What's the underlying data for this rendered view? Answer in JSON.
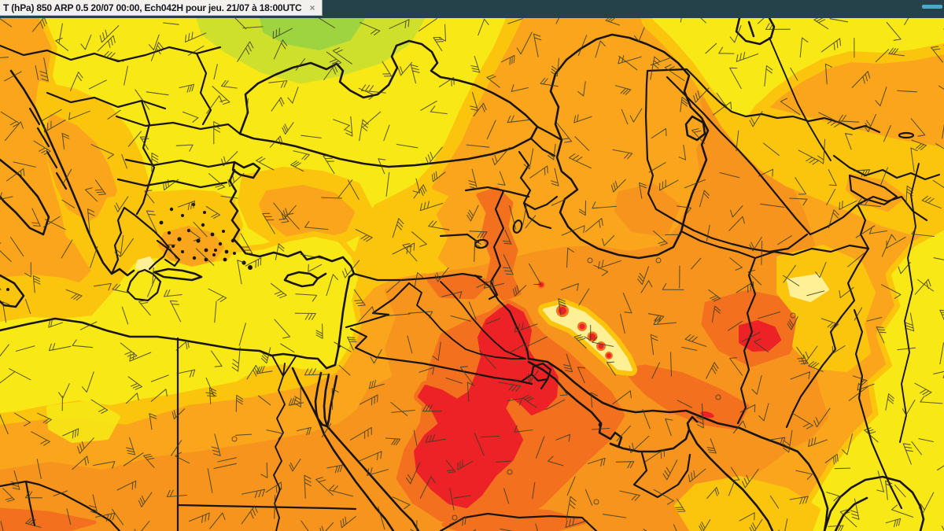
{
  "window": {
    "topbar": {
      "background": "#25424b",
      "scroll_indicator_color": "#4aa9c9"
    },
    "tab": {
      "title": "T (hPa) 850 ARP 0.5 20/07 00:00, Ech042H pour jeu. 21/07 à 18:00UTC",
      "close_label": "×",
      "background": "#f2f1ed",
      "text_color": "#17171f"
    }
  },
  "map": {
    "palette": {
      "green": "#9ed43f",
      "yellow_green": "#cfe02c",
      "yellow": "#f7e816",
      "pale_yellow": "#fff095",
      "gold": "#fcc50d",
      "light_orange": "#faa51c",
      "orange": "#f7941d",
      "deep_orange": "#f3701f",
      "red": "#ec2227",
      "border": "#1a1511",
      "barb": "#3b3a22"
    },
    "wind_barbs": {
      "spacing": 37,
      "jitter": 9,
      "shaft_length": 24,
      "tick_length": 9,
      "seed": 20
    }
  }
}
